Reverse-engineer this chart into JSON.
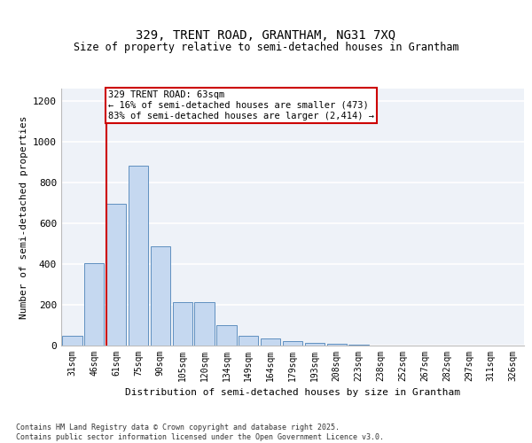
{
  "title1": "329, TRENT ROAD, GRANTHAM, NG31 7XQ",
  "title2": "Size of property relative to semi-detached houses in Grantham",
  "xlabel": "Distribution of semi-detached houses by size in Grantham",
  "ylabel": "Number of semi-detached properties",
  "categories": [
    "31sqm",
    "46sqm",
    "61sqm",
    "75sqm",
    "90sqm",
    "105sqm",
    "120sqm",
    "134sqm",
    "149sqm",
    "164sqm",
    "179sqm",
    "193sqm",
    "208sqm",
    "223sqm",
    "238sqm",
    "252sqm",
    "267sqm",
    "282sqm",
    "297sqm",
    "311sqm",
    "326sqm"
  ],
  "values": [
    47,
    405,
    695,
    880,
    487,
    213,
    213,
    100,
    47,
    35,
    20,
    13,
    8,
    3,
    1,
    1,
    0,
    0,
    0,
    0,
    2
  ],
  "bar_color": "#c5d8f0",
  "bar_edge_color": "#6090c0",
  "annotation_title": "329 TRENT ROAD: 63sqm",
  "annotation_line1": "← 16% of semi-detached houses are smaller (473)",
  "annotation_line2": "83% of semi-detached houses are larger (2,414) →",
  "annotation_box_color": "#ffffff",
  "annotation_box_edge": "#cc0000",
  "vline_color": "#cc0000",
  "vline_x_index": 2,
  "ylim": [
    0,
    1260
  ],
  "yticks": [
    0,
    200,
    400,
    600,
    800,
    1000,
    1200
  ],
  "background_color": "#eef2f8",
  "grid_color": "#ffffff",
  "footer1": "Contains HM Land Registry data © Crown copyright and database right 2025.",
  "footer2": "Contains public sector information licensed under the Open Government Licence v3.0."
}
